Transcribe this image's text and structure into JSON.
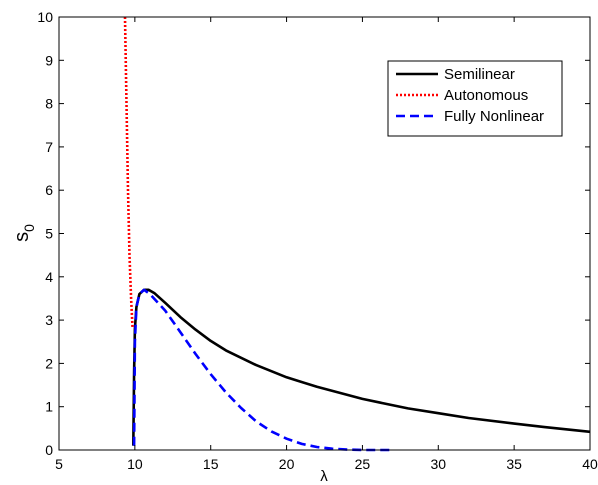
{
  "chart_data": {
    "type": "line",
    "title": "",
    "xlabel": "λ",
    "ylabel": "s",
    "ylabel_subscript": "0",
    "xlim": [
      5,
      40
    ],
    "ylim": [
      0,
      10
    ],
    "xticks": [
      5,
      10,
      15,
      20,
      25,
      30,
      35,
      40
    ],
    "yticks": [
      0,
      1,
      2,
      3,
      4,
      5,
      6,
      7,
      8,
      9,
      10
    ],
    "grid": false,
    "legend_position": "top-right",
    "series": [
      {
        "name": "Semilinear",
        "color": "#000000",
        "style": "solid",
        "x": [
          9.9,
          9.95,
          10.0,
          10.1,
          10.3,
          10.6,
          10.9,
          11.3,
          12,
          13,
          14,
          15,
          16,
          18,
          20,
          22,
          25,
          28,
          30,
          32,
          35,
          37,
          40
        ],
        "y": [
          0.1,
          1.8,
          2.8,
          3.3,
          3.6,
          3.7,
          3.7,
          3.62,
          3.4,
          3.07,
          2.78,
          2.52,
          2.3,
          1.96,
          1.68,
          1.46,
          1.18,
          0.96,
          0.85,
          0.74,
          0.61,
          0.53,
          0.42
        ]
      },
      {
        "name": "Autonomous",
        "color": "#ff0000",
        "style": "dotted",
        "x": [
          9.35,
          9.45,
          9.55,
          9.65,
          9.75,
          9.85
        ],
        "y": [
          10,
          8,
          6,
          4.5,
          3.5,
          2.8
        ]
      },
      {
        "name": "Fully Nonlinear",
        "color": "#0000ff",
        "style": "dashed",
        "x": [
          9.95,
          10.0,
          10.1,
          10.3,
          10.6,
          11,
          12,
          13,
          14,
          15,
          16,
          17,
          18,
          19,
          20,
          21,
          22,
          23,
          24,
          25,
          26,
          27
        ],
        "y": [
          0.1,
          2.5,
          3.3,
          3.6,
          3.7,
          3.6,
          3.22,
          2.72,
          2.22,
          1.75,
          1.33,
          0.97,
          0.66,
          0.43,
          0.26,
          0.14,
          0.07,
          0.03,
          0.01,
          0.0,
          0.0,
          0.0
        ]
      }
    ]
  }
}
